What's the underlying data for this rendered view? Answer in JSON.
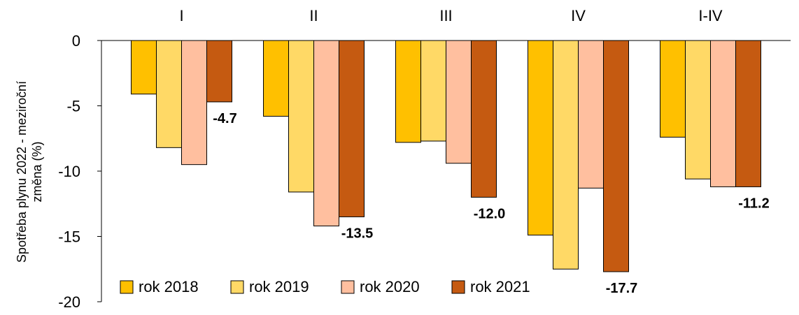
{
  "chart_data": {
    "type": "bar",
    "categories": [
      "I",
      "II",
      "III",
      "IV",
      "I-IV"
    ],
    "series": [
      {
        "name": "rok 2018",
        "color": "#FFC000",
        "values": [
          -4.1,
          -5.8,
          -7.8,
          -14.9,
          -7.4
        ]
      },
      {
        "name": "rok 2019",
        "color": "#FFD966",
        "values": [
          -8.2,
          -11.6,
          -7.7,
          -17.5,
          -10.6
        ]
      },
      {
        "name": "rok 2020",
        "color": "#FFBF9F",
        "values": [
          -9.5,
          -14.2,
          -9.4,
          -11.3,
          -11.2
        ]
      },
      {
        "name": "rok 2021",
        "color": "#C55A11",
        "values": [
          -4.7,
          -13.5,
          -12.0,
          -17.7,
          -11.2
        ]
      }
    ],
    "data_labels": [
      "-4.7",
      "-13.5",
      "-12.0",
      "-17.7",
      "-11.2"
    ],
    "ylabel_line1": "Spotřeba plynu 2022 - meziroční",
    "ylabel_line2": "změna (%)",
    "ylim": [
      -20,
      0
    ],
    "yticks": [
      0,
      -5,
      -10,
      -15,
      -20
    ],
    "ytick_labels": [
      "0",
      "-5",
      "-10",
      "-15",
      "-20"
    ],
    "legend_position": "bottom-left",
    "grid": false,
    "category_axis_position": "top"
  }
}
